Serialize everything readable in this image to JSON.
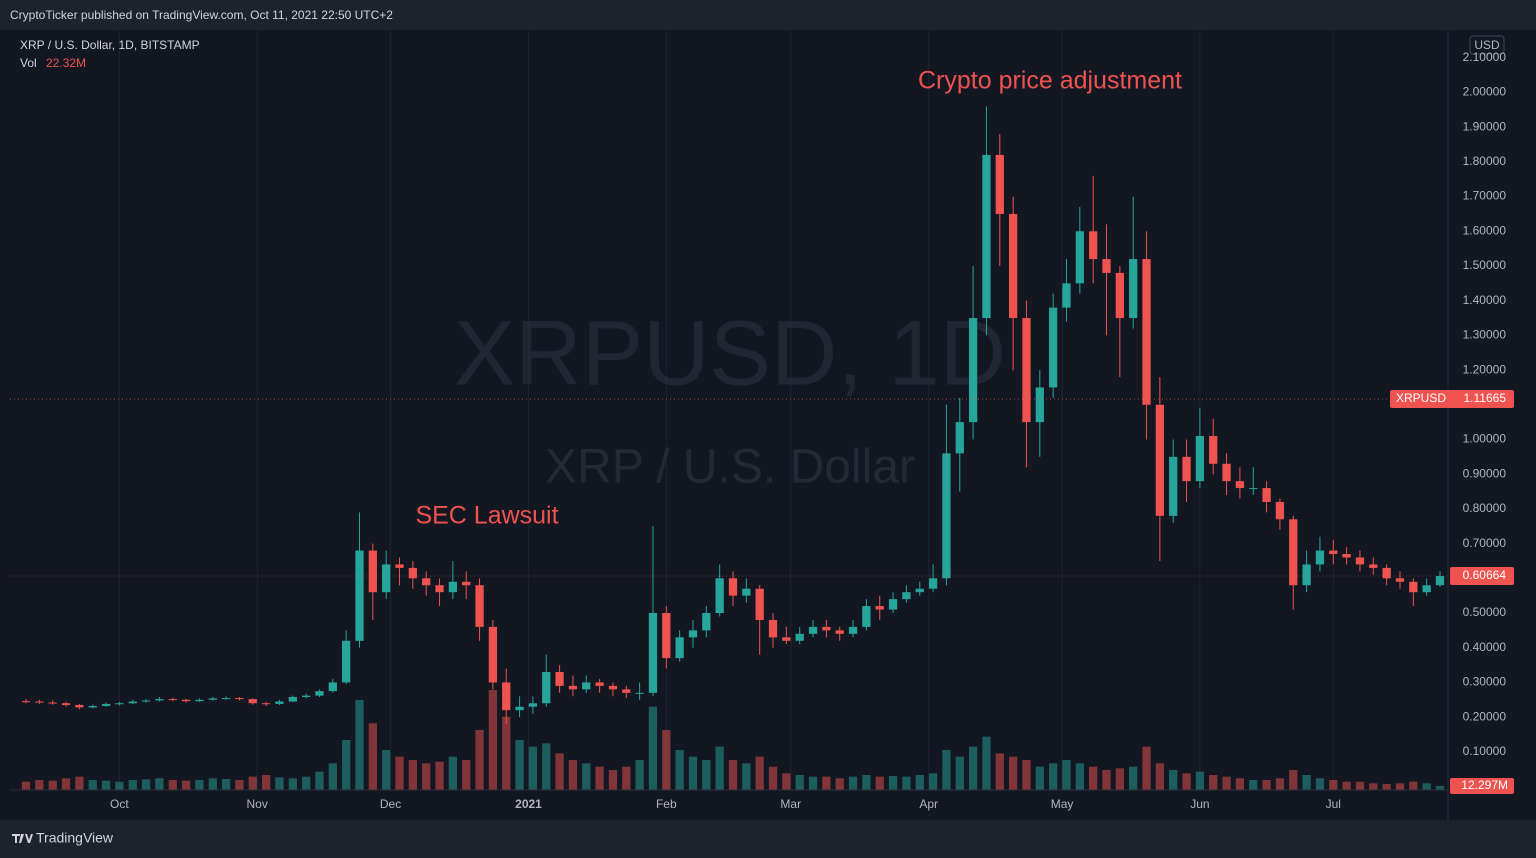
{
  "header": "CryptoTicker published on TradingView.com, Oct 11, 2021 22:50 UTC+2",
  "footer": "TradingView",
  "chart_data": {
    "type": "candlestick",
    "title": "XRP / U.S. Dollar, 1D, BITSTAMP",
    "watermark": [
      "XRPUSD, 1D",
      "XRP / U.S. Dollar"
    ],
    "annotations": [
      {
        "text": "Crypto price adjustment"
      },
      {
        "text": "SEC Lawsuit"
      }
    ],
    "y_unit": "USD",
    "up_color": "#26a69a",
    "down_color": "#ef5350",
    "grid": true,
    "xlim": [
      -1.2,
      106.6
    ],
    "xticks": [
      {
        "value": 7,
        "label": "Oct"
      },
      {
        "value": 17.33,
        "label": "Nov"
      },
      {
        "value": 27.33,
        "label": "Dec"
      },
      {
        "value": 37.67,
        "label": "2021"
      },
      {
        "value": 48,
        "label": "Feb"
      },
      {
        "value": 57.33,
        "label": "Mar"
      },
      {
        "value": 67.67,
        "label": "Apr"
      },
      {
        "value": 77.67,
        "label": "May"
      },
      {
        "value": 88,
        "label": "Jun"
      },
      {
        "value": 98,
        "label": "Jul"
      }
    ],
    "ylim": [
      -0.01,
      2.18
    ],
    "yticks": [
      {
        "value": 0.1,
        "label": "0.10000"
      },
      {
        "value": 0.2,
        "label": "0.20000"
      },
      {
        "value": 0.3,
        "label": "0.30000"
      },
      {
        "value": 0.4,
        "label": "0.40000"
      },
      {
        "value": 0.5,
        "label": "0.50000"
      },
      {
        "value": 0.6,
        "label": "0.60000"
      },
      {
        "value": 0.7,
        "label": "0.70000"
      },
      {
        "value": 0.8,
        "label": "0.80000"
      },
      {
        "value": 0.9,
        "label": "0.90000"
      },
      {
        "value": 1.0,
        "label": "1.00000"
      },
      {
        "value": 1.1,
        "label": "1.10000"
      },
      {
        "value": 1.2,
        "label": "1.20000"
      },
      {
        "value": 1.3,
        "label": "1.30000"
      },
      {
        "value": 1.4,
        "label": "1.40000"
      },
      {
        "value": 1.5,
        "label": "1.50000"
      },
      {
        "value": 1.6,
        "label": "1.60000"
      },
      {
        "value": 1.7,
        "label": "1.70000"
      },
      {
        "value": 1.8,
        "label": "1.80000"
      },
      {
        "value": 1.9,
        "label": "1.90000"
      },
      {
        "value": 2.0,
        "label": "2.00000"
      },
      {
        "value": 2.1,
        "label": "2.10000"
      }
    ],
    "price_line": {
      "name": "XRPUSD",
      "value": 1.11665
    },
    "open": [
      0.246,
      0.245,
      0.242,
      0.24,
      0.235,
      0.228,
      0.232,
      0.238,
      0.24,
      0.245,
      0.248,
      0.252,
      0.25,
      0.246,
      0.25,
      0.254,
      0.255,
      0.252,
      0.24,
      0.238,
      0.245,
      0.258,
      0.262,
      0.275,
      0.3,
      0.42,
      0.68,
      0.56,
      0.64,
      0.63,
      0.6,
      0.58,
      0.56,
      0.59,
      0.58,
      0.46,
      0.3,
      0.22,
      0.23,
      0.24,
      0.33,
      0.29,
      0.28,
      0.3,
      0.29,
      0.28,
      0.27,
      0.27,
      0.5,
      0.37,
      0.43,
      0.45,
      0.5,
      0.6,
      0.55,
      0.57,
      0.48,
      0.43,
      0.42,
      0.44,
      0.46,
      0.45,
      0.44,
      0.46,
      0.52,
      0.51,
      0.54,
      0.56,
      0.57,
      0.6,
      0.96,
      1.05,
      1.35,
      1.82,
      1.65,
      1.35,
      1.05,
      1.15,
      1.38,
      1.45,
      1.6,
      1.52,
      1.48,
      1.35,
      1.52,
      1.1,
      0.78,
      0.95,
      0.88,
      1.01,
      0.93,
      0.88,
      0.86,
      0.86,
      0.82,
      0.77,
      0.58,
      0.64,
      0.68,
      0.67,
      0.66,
      0.64,
      0.63,
      0.6,
      0.59,
      0.56,
      0.58
    ],
    "high": [
      0.252,
      0.25,
      0.248,
      0.244,
      0.238,
      0.236,
      0.242,
      0.244,
      0.25,
      0.252,
      0.258,
      0.256,
      0.252,
      0.254,
      0.258,
      0.26,
      0.258,
      0.254,
      0.244,
      0.25,
      0.262,
      0.268,
      0.28,
      0.31,
      0.45,
      0.79,
      0.7,
      0.68,
      0.66,
      0.65,
      0.62,
      0.6,
      0.65,
      0.62,
      0.6,
      0.48,
      0.34,
      0.26,
      0.26,
      0.38,
      0.35,
      0.32,
      0.32,
      0.31,
      0.3,
      0.29,
      0.3,
      0.75,
      0.52,
      0.45,
      0.48,
      0.52,
      0.64,
      0.62,
      0.6,
      0.58,
      0.5,
      0.46,
      0.46,
      0.48,
      0.48,
      0.46,
      0.48,
      0.54,
      0.55,
      0.56,
      0.58,
      0.59,
      0.64,
      1.1,
      1.12,
      1.5,
      1.96,
      1.88,
      1.7,
      1.4,
      1.2,
      1.42,
      1.52,
      1.67,
      1.76,
      1.62,
      1.5,
      1.7,
      1.6,
      1.18,
      1.0,
      1.0,
      1.09,
      1.06,
      0.96,
      0.92,
      0.92,
      0.88,
      0.83,
      0.78,
      0.68,
      0.72,
      0.71,
      0.69,
      0.68,
      0.66,
      0.64,
      0.62,
      0.6,
      0.6,
      0.62
    ],
    "low": [
      0.24,
      0.238,
      0.236,
      0.23,
      0.222,
      0.225,
      0.23,
      0.234,
      0.238,
      0.242,
      0.245,
      0.246,
      0.242,
      0.244,
      0.248,
      0.25,
      0.248,
      0.236,
      0.232,
      0.235,
      0.243,
      0.255,
      0.258,
      0.27,
      0.295,
      0.4,
      0.48,
      0.54,
      0.58,
      0.57,
      0.55,
      0.52,
      0.54,
      0.54,
      0.42,
      0.28,
      0.18,
      0.2,
      0.21,
      0.23,
      0.27,
      0.26,
      0.27,
      0.27,
      0.26,
      0.255,
      0.25,
      0.26,
      0.34,
      0.36,
      0.4,
      0.43,
      0.49,
      0.52,
      0.53,
      0.38,
      0.4,
      0.41,
      0.41,
      0.43,
      0.43,
      0.42,
      0.43,
      0.45,
      0.48,
      0.5,
      0.53,
      0.55,
      0.56,
      0.58,
      0.85,
      1.0,
      1.3,
      1.5,
      1.2,
      0.92,
      0.95,
      1.12,
      1.34,
      1.42,
      1.45,
      1.3,
      1.18,
      1.32,
      1.0,
      0.65,
      0.76,
      0.82,
      0.86,
      0.9,
      0.84,
      0.83,
      0.84,
      0.79,
      0.74,
      0.51,
      0.56,
      0.62,
      0.64,
      0.64,
      0.62,
      0.61,
      0.58,
      0.57,
      0.52,
      0.55,
      0.575
    ],
    "close": [
      0.245,
      0.242,
      0.24,
      0.235,
      0.228,
      0.232,
      0.238,
      0.24,
      0.245,
      0.248,
      0.252,
      0.25,
      0.246,
      0.25,
      0.254,
      0.255,
      0.252,
      0.24,
      0.238,
      0.245,
      0.258,
      0.262,
      0.275,
      0.3,
      0.42,
      0.68,
      0.56,
      0.64,
      0.63,
      0.6,
      0.58,
      0.56,
      0.59,
      0.58,
      0.46,
      0.3,
      0.22,
      0.23,
      0.24,
      0.33,
      0.29,
      0.28,
      0.3,
      0.29,
      0.28,
      0.27,
      0.27,
      0.5,
      0.37,
      0.43,
      0.45,
      0.5,
      0.6,
      0.55,
      0.57,
      0.48,
      0.43,
      0.42,
      0.44,
      0.46,
      0.45,
      0.44,
      0.46,
      0.52,
      0.51,
      0.54,
      0.56,
      0.57,
      0.6,
      0.96,
      1.05,
      1.35,
      1.82,
      1.65,
      1.35,
      1.05,
      1.15,
      1.38,
      1.45,
      1.6,
      1.52,
      1.48,
      1.35,
      1.52,
      1.1,
      0.78,
      0.95,
      0.88,
      1.01,
      0.93,
      0.88,
      0.86,
      0.86,
      0.82,
      0.77,
      0.58,
      0.64,
      0.68,
      0.67,
      0.66,
      0.64,
      0.63,
      0.6,
      0.59,
      0.56,
      0.58,
      0.60664
    ],
    "volume": {
      "name": "Vol",
      "header_label": "22.32M",
      "last_label": "12.297M",
      "values": [
        25,
        30,
        28,
        35,
        40,
        30,
        28,
        25,
        30,
        32,
        35,
        30,
        28,
        30,
        35,
        33,
        30,
        40,
        45,
        38,
        35,
        40,
        55,
        80,
        150,
        270,
        200,
        120,
        100,
        90,
        80,
        85,
        100,
        90,
        180,
        300,
        220,
        150,
        130,
        140,
        110,
        90,
        80,
        70,
        60,
        70,
        90,
        250,
        180,
        120,
        100,
        90,
        130,
        90,
        80,
        100,
        70,
        50,
        45,
        40,
        40,
        35,
        40,
        45,
        40,
        42,
        40,
        45,
        50,
        120,
        100,
        130,
        160,
        110,
        100,
        90,
        70,
        80,
        90,
        80,
        70,
        60,
        65,
        70,
        130,
        80,
        60,
        50,
        55,
        45,
        40,
        35,
        30,
        30,
        35,
        60,
        45,
        35,
        30,
        25,
        25,
        20,
        18,
        20,
        25,
        20,
        12.297
      ]
    }
  }
}
